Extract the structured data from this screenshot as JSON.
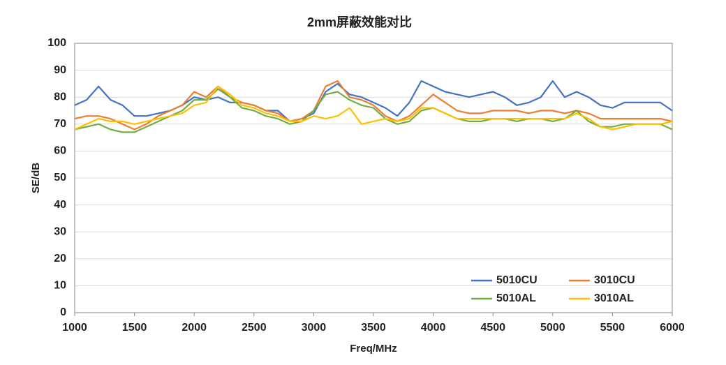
{
  "chart_data": {
    "type": "line",
    "title": "2mm屏蔽效能对比",
    "x_label": "Freq/MHz",
    "y_label": "SE/dB",
    "x": [
      1000,
      1100,
      1200,
      1300,
      1400,
      1500,
      1600,
      1700,
      1800,
      1900,
      2000,
      2100,
      2200,
      2300,
      2400,
      2500,
      2600,
      2700,
      2800,
      2900,
      3000,
      3100,
      3200,
      3300,
      3400,
      3500,
      3600,
      3700,
      3800,
      3900,
      4000,
      4100,
      4200,
      4300,
      4400,
      4500,
      4600,
      4700,
      4800,
      4900,
      5000,
      5100,
      5200,
      5300,
      5400,
      5500,
      5600,
      5700,
      5800,
      5900,
      6000
    ],
    "series": [
      {
        "name": "5010CU",
        "color": "#4472c4",
        "values": [
          77,
          79,
          84,
          79,
          77,
          73,
          73,
          74,
          75,
          77,
          80,
          79,
          80,
          78,
          78,
          77,
          75,
          75,
          71,
          72,
          74,
          82,
          85,
          81,
          80,
          78,
          76,
          73,
          78,
          86,
          84,
          82,
          81,
          80,
          81,
          82,
          80,
          77,
          78,
          80,
          86,
          80,
          82,
          80,
          77,
          76,
          78,
          78,
          78,
          78,
          75
        ]
      },
      {
        "name": "3010CU",
        "color": "#ed7d31",
        "values": [
          72,
          73,
          73,
          72,
          70,
          68,
          70,
          73,
          75,
          77,
          82,
          80,
          84,
          80,
          78,
          77,
          75,
          74,
          71,
          72,
          75,
          84,
          86,
          80,
          79,
          77,
          73,
          71,
          73,
          77,
          81,
          78,
          75,
          74,
          74,
          75,
          75,
          75,
          74,
          75,
          75,
          74,
          75,
          74,
          72,
          72,
          72,
          72,
          72,
          72,
          71
        ]
      },
      {
        "name": "5010AL",
        "color": "#70ad47",
        "values": [
          68,
          69,
          70,
          68,
          67,
          67,
          69,
          71,
          73,
          75,
          79,
          79,
          83,
          80,
          76,
          75,
          73,
          72,
          70,
          71,
          75,
          81,
          82,
          79,
          77,
          76,
          72,
          70,
          71,
          75,
          76,
          74,
          72,
          71,
          71,
          72,
          72,
          71,
          72,
          72,
          71,
          72,
          75,
          71,
          69,
          69,
          70,
          70,
          70,
          70,
          68
        ]
      },
      {
        "name": "3010AL",
        "color": "#ffc000",
        "values": [
          68,
          70,
          72,
          71,
          71,
          70,
          71,
          72,
          73,
          74,
          77,
          78,
          84,
          81,
          77,
          76,
          74,
          73,
          71,
          71,
          73,
          72,
          73,
          76,
          70,
          71,
          72,
          71,
          72,
          76,
          76,
          74,
          72,
          72,
          72,
          72,
          72,
          72,
          72,
          72,
          72,
          72,
          74,
          72,
          69,
          68,
          69,
          70,
          70,
          70,
          71
        ]
      }
    ],
    "xlim": [
      1000,
      6000
    ],
    "xticks": [
      1000,
      1500,
      2000,
      2500,
      3000,
      3500,
      4000,
      4500,
      5000,
      5500,
      6000
    ],
    "ylim": [
      0,
      100
    ],
    "yticks": [
      0,
      10,
      20,
      30,
      40,
      50,
      60,
      70,
      80,
      90,
      100
    ],
    "grid": true,
    "legend": "lower right"
  }
}
